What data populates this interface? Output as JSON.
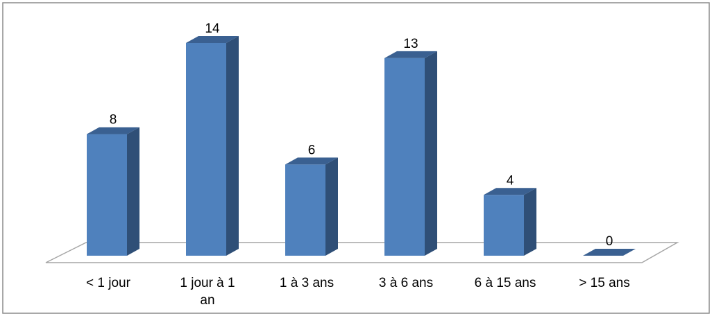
{
  "chart_data": {
    "type": "bar",
    "style": "3d-column",
    "categories": [
      "< 1 jour",
      "1 jour à 1 an",
      "1 à 3 ans",
      "3 à 6 ans",
      "6 à 15 ans",
      "> 15 ans"
    ],
    "category_lines": [
      [
        "< 1 jour"
      ],
      [
        "1 jour à 1",
        "an"
      ],
      [
        "1 à 3 ans"
      ],
      [
        "3 à 6 ans"
      ],
      [
        "6 à 15 ans"
      ],
      [
        "> 15 ans"
      ]
    ],
    "series": [
      {
        "values": [
          8,
          14,
          6,
          13,
          4,
          0
        ],
        "data_labels": [
          "8",
          "14",
          "6",
          "13",
          "4",
          "0"
        ]
      }
    ],
    "ylim": [
      0,
      14
    ],
    "grid": false,
    "legend": "none",
    "colors": {
      "front": "#4f81bd",
      "side": "#2f4f77",
      "top": "#3a6091",
      "floor_stroke": "#a6a6a6",
      "frame_stroke": "#8c8c8c"
    }
  }
}
